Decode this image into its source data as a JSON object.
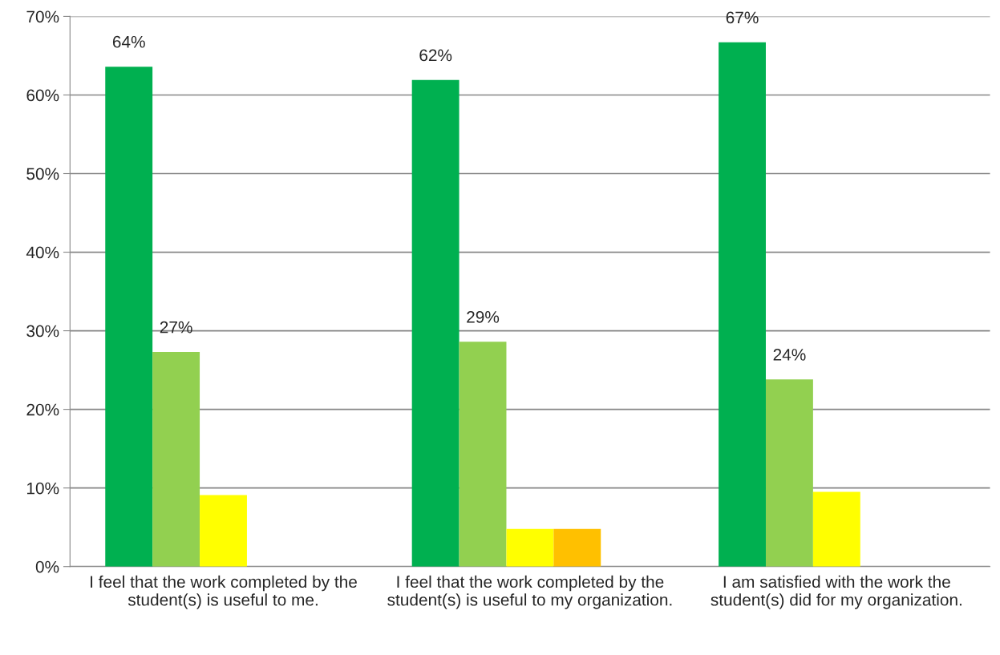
{
  "chart_data": {
    "type": "bar",
    "categories": [
      "I feel that the work completed by the student(s) is useful to me.",
      "I feel that the work completed by the student(s) is useful to my organization.",
      "I am satisfied with the work the student(s) did for my organization."
    ],
    "series": [
      {
        "color": "#00b050",
        "values": [
          63.6,
          61.9,
          66.7
        ],
        "value_labels": [
          "64%",
          "62%",
          "67%"
        ]
      },
      {
        "color": "#92d050",
        "values": [
          27.3,
          28.6,
          23.8
        ],
        "value_labels": [
          "27%",
          "29%",
          "24%"
        ]
      },
      {
        "color": "#ffff00",
        "values": [
          9.1,
          4.8,
          9.5
        ]
      },
      {
        "color": "#ffc000",
        "values": [
          0,
          4.8,
          0
        ]
      }
    ],
    "ylim": [
      0,
      70
    ],
    "yticks": [
      {
        "value": 0,
        "label": "0%"
      },
      {
        "value": 10,
        "label": "10%"
      },
      {
        "value": 20,
        "label": "20%"
      },
      {
        "value": 30,
        "label": "30%"
      },
      {
        "value": 40,
        "label": "40%"
      },
      {
        "value": 50,
        "label": "50%"
      },
      {
        "value": 60,
        "label": "60%"
      },
      {
        "value": 70,
        "label": "70%"
      }
    ],
    "grid": "y"
  }
}
